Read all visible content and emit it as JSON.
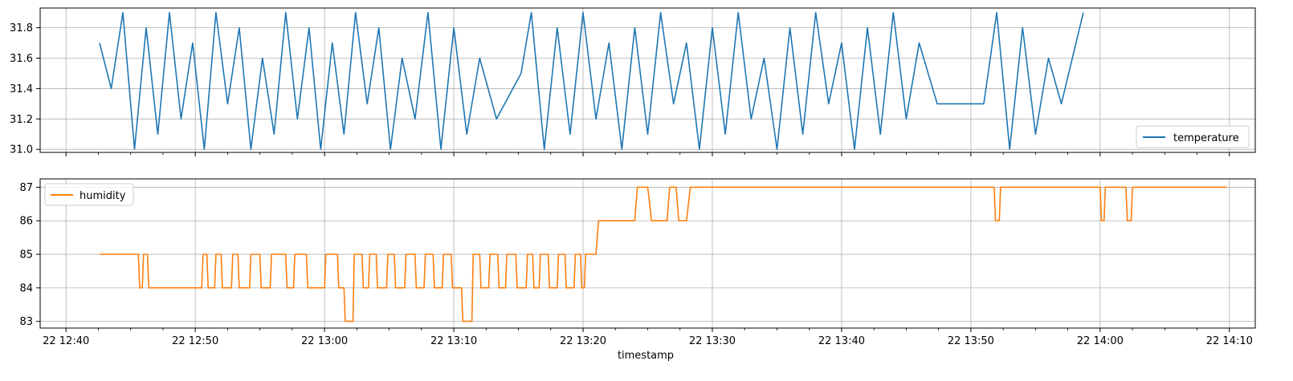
{
  "chart_data": [
    {
      "type": "line",
      "series": [
        {
          "name": "temperature",
          "color": "#1f77b4",
          "x_minutes": [
            2.6,
            3.5,
            4.4,
            5.3,
            6.2,
            7.1,
            8.0,
            8.9,
            9.8,
            10.7,
            11.6,
            12.5,
            13.4,
            14.3,
            15.2,
            16.1,
            17.0,
            17.9,
            18.8,
            19.7,
            20.6,
            21.5,
            22.4,
            23.3,
            24.2,
            25.1,
            26.0,
            27.0,
            28.0,
            29.0,
            30.0,
            31.0,
            32.0,
            33.3,
            35.2,
            36.0,
            37.0,
            38.0,
            39.0,
            40.0,
            41.0,
            42.0,
            43.0,
            44.0,
            45.0,
            46.0,
            47.0,
            48.0,
            49.0,
            50.0,
            51.0,
            52.0,
            53.0,
            54.0,
            55.0,
            56.0,
            57.0,
            58.0,
            59.0,
            60.0,
            61.0,
            62.0,
            63.0,
            64.0,
            65.0,
            66.0,
            67.4,
            71.0,
            72.0,
            73.0,
            74.0,
            75.0,
            76.0,
            77.0,
            78.7
          ],
          "values": [
            31.7,
            31.4,
            31.9,
            31.0,
            31.8,
            31.1,
            31.9,
            31.2,
            31.7,
            31.0,
            31.9,
            31.3,
            31.8,
            31.0,
            31.6,
            31.1,
            31.9,
            31.2,
            31.8,
            31.0,
            31.7,
            31.1,
            31.9,
            31.3,
            31.8,
            31.0,
            31.6,
            31.2,
            31.9,
            31.0,
            31.8,
            31.1,
            31.6,
            31.2,
            31.5,
            31.9,
            31.0,
            31.8,
            31.1,
            31.9,
            31.2,
            31.7,
            31.0,
            31.8,
            31.1,
            31.9,
            31.3,
            31.7,
            31.0,
            31.8,
            31.1,
            31.9,
            31.2,
            31.6,
            31.0,
            31.8,
            31.1,
            31.9,
            31.3,
            31.7,
            31.0,
            31.8,
            31.1,
            31.9,
            31.2,
            31.7,
            31.3,
            31.3,
            31.9,
            31.0,
            31.8,
            31.1,
            31.6,
            31.3,
            31.9
          ]
        }
      ],
      "ylim": [
        30.98,
        31.93
      ],
      "yticks": [
        "31.0",
        "31.2",
        "31.4",
        "31.6",
        "31.8"
      ],
      "grid": true,
      "legend_position": "lower-right"
    },
    {
      "type": "line",
      "series": [
        {
          "name": "humidity",
          "color": "#ff7f0e",
          "x_minutes": [
            2.6,
            5.6,
            5.7,
            5.9,
            6.0,
            6.3,
            6.4,
            10.5,
            10.6,
            10.9,
            11.0,
            11.5,
            11.6,
            12.0,
            12.1,
            12.8,
            12.9,
            13.3,
            13.4,
            14.2,
            14.3,
            15.0,
            15.1,
            15.8,
            15.9,
            17.0,
            17.1,
            17.6,
            17.7,
            18.6,
            18.7,
            20.0,
            20.1,
            21.0,
            21.1,
            21.5,
            21.6,
            22.2,
            22.3,
            22.9,
            23.0,
            23.4,
            23.5,
            24.0,
            24.1,
            24.8,
            24.9,
            25.4,
            25.5,
            26.2,
            26.3,
            27.0,
            27.1,
            27.7,
            27.8,
            28.4,
            28.5,
            29.1,
            29.2,
            29.8,
            29.9,
            30.6,
            30.7,
            31.4,
            31.5,
            32.0,
            32.1,
            32.7,
            32.8,
            33.4,
            33.5,
            34.0,
            34.1,
            34.8,
            34.9,
            35.6,
            35.7,
            36.1,
            36.2,
            36.6,
            36.7,
            37.3,
            37.4,
            38.0,
            38.1,
            38.6,
            38.7,
            39.3,
            39.4,
            39.8,
            39.9,
            40.1,
            40.2,
            41.0,
            41.2,
            42.1,
            42.3,
            44.0,
            44.2,
            45.0,
            45.3,
            46.5,
            46.7,
            47.2,
            47.4,
            48.0,
            48.3,
            71.8,
            71.9,
            72.2,
            72.3,
            80.0,
            80.1,
            80.3,
            80.4,
            82.0,
            82.1,
            82.4,
            82.5,
            89.8
          ],
          "values": [
            85,
            85,
            84,
            84,
            85,
            85,
            84,
            84,
            85,
            85,
            84,
            84,
            85,
            85,
            84,
            84,
            85,
            85,
            84,
            84,
            85,
            85,
            84,
            84,
            85,
            85,
            84,
            84,
            85,
            85,
            84,
            84,
            85,
            85,
            84,
            84,
            83,
            83,
            85,
            85,
            84,
            84,
            85,
            85,
            84,
            84,
            85,
            85,
            84,
            84,
            85,
            85,
            84,
            84,
            85,
            85,
            84,
            84,
            85,
            85,
            84,
            84,
            83,
            83,
            85,
            85,
            84,
            84,
            85,
            85,
            84,
            84,
            85,
            85,
            84,
            84,
            85,
            85,
            84,
            84,
            85,
            85,
            84,
            84,
            85,
            85,
            84,
            84,
            85,
            85,
            84,
            84,
            85,
            85,
            86,
            86,
            86,
            86,
            87,
            87,
            86,
            86,
            87,
            87,
            86,
            86,
            87,
            87,
            86,
            86,
            87,
            87,
            86,
            86,
            87,
            87,
            86,
            86,
            87,
            87
          ],
          "highlights": []
        }
      ],
      "ylim": [
        82.8,
        87.25
      ],
      "yticks": [
        "83",
        "84",
        "85",
        "86",
        "87"
      ],
      "xticks": [
        "22 12:40",
        "22 12:50",
        "22 13:00",
        "22 13:10",
        "22 13:20",
        "22 13:30",
        "22 13:40",
        "22 13:50",
        "22 14:00",
        "22 14:10"
      ],
      "xlabel": "timestamp",
      "grid": true,
      "legend_position": "upper-left"
    }
  ],
  "x_axis": {
    "range_minutes": [
      -2.0,
      92.0
    ],
    "tick_minutes": [
      0,
      10,
      20,
      30,
      40,
      50,
      60,
      70,
      80,
      90
    ]
  }
}
